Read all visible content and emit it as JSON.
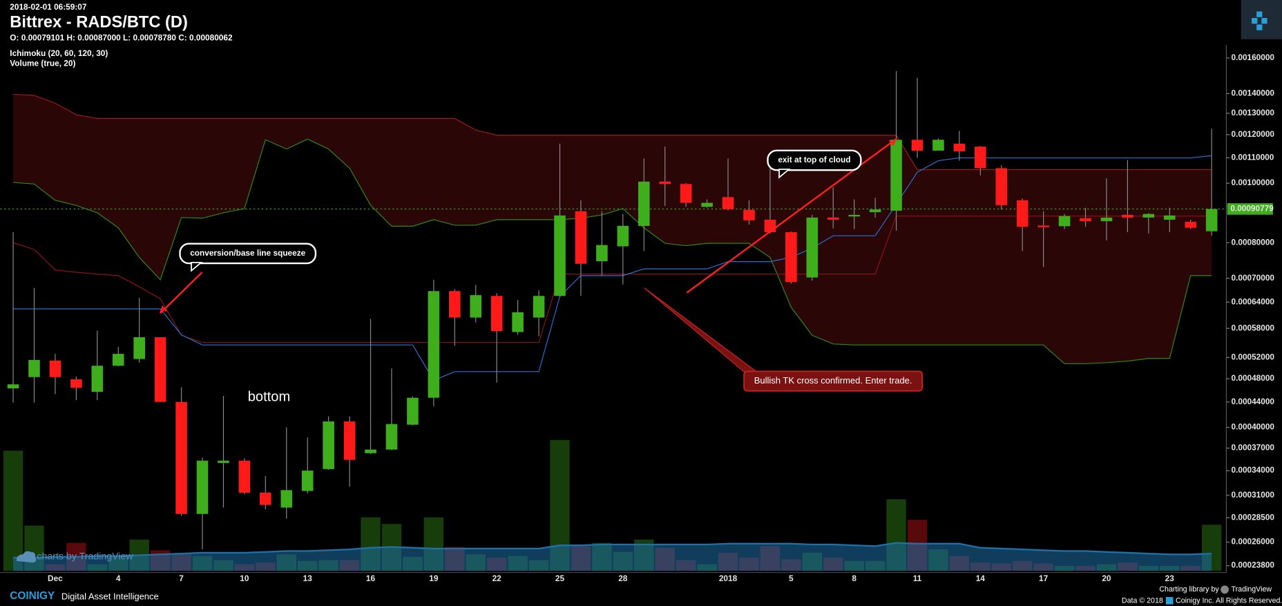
{
  "header": {
    "timestamp": "2018-02-01 06:59:07",
    "title": "Bittrex - RADS/BTC (D)",
    "ohlc": "O: 0.00079101 H: 0.00087000 L: 0.00078780 C: 0.00080062",
    "indicators": [
      "Ichimoku (20, 60, 120, 30)",
      "Volume (true, 20)"
    ]
  },
  "chart_data": {
    "type": "candlestick",
    "log_scale": true,
    "grid": false,
    "categories": [
      null,
      null,
      "Dec",
      null,
      null,
      "4",
      null,
      null,
      "7",
      null,
      null,
      "10",
      null,
      null,
      "13",
      null,
      null,
      "16",
      null,
      null,
      "19",
      null,
      null,
      "22",
      null,
      null,
      "25",
      null,
      null,
      "28",
      null,
      null,
      null,
      null,
      "2018",
      null,
      null,
      "5",
      null,
      null,
      "8",
      null,
      null,
      "11",
      null,
      null,
      "14",
      null,
      null,
      "17",
      null,
      null,
      "20",
      null,
      null,
      "23",
      null,
      null
    ],
    "open": [
      0.000463,
      0.000483,
      0.000514,
      0.000479,
      0.000457,
      0.000504,
      0.000517,
      0.000561,
      0.00044,
      0.000289,
      0.00035,
      0.000353,
      0.000313,
      0.000296,
      0.000315,
      0.000342,
      0.000409,
      0.000363,
      0.000368,
      0.000404,
      0.000447,
      0.000667,
      0.000604,
      0.000655,
      0.000572,
      0.000604,
      0.000655,
      0.0009,
      0.000746,
      0.000789,
      0.000852,
      0.001006,
      0.000997,
      0.000915,
      0.000949,
      0.000905,
      0.000872,
      0.000832,
      0.000702,
      0.000879,
      0.000884,
      0.000897,
      0.000902,
      0.001177,
      0.00113,
      0.00116,
      0.001147,
      0.001058,
      0.000938,
      0.000853,
      0.000851,
      0.000877,
      0.000867,
      0.000888,
      0.000879,
      0.000872,
      0.000865,
      0.000835
    ],
    "high": [
      0.000832,
      0.000675,
      0.000527,
      0.000484,
      0.000575,
      0.000541,
      0.00065,
      0.000561,
      0.000465,
      0.000357,
      0.00045,
      0.000356,
      0.000333,
      0.0004,
      0.000385,
      0.000417,
      0.000417,
      0.000601,
      0.000499,
      0.000449,
      0.000696,
      0.000672,
      0.000683,
      0.000662,
      0.000645,
      0.000669,
      0.00116,
      0.000938,
      0.0009,
      0.000891,
      0.001097,
      0.001147,
      0.001,
      0.000941,
      0.001097,
      0.000938,
      0.001115,
      0.000834,
      0.000888,
      0.000985,
      0.000941,
      0.000947,
      0.001523,
      0.001485,
      0.001183,
      0.001217,
      0.00115,
      0.00107,
      0.000944,
      0.0009,
      0.000891,
      0.000912,
      0.001018,
      0.001091,
      0.000894,
      0.000912,
      0.000872,
      0.001227
    ],
    "low": [
      0.000439,
      0.000439,
      0.000453,
      0.000443,
      0.000443,
      0.000503,
      0.00051,
      0.00044,
      0.000287,
      0.000253,
      0.000296,
      0.000311,
      0.000294,
      0.000284,
      0.000312,
      0.000341,
      0.00032,
      0.000362,
      0.000367,
      0.000403,
      0.000433,
      0.000543,
      0.000593,
      0.000473,
      0.000566,
      0.000563,
      0.000653,
      0.000655,
      0.000707,
      0.000684,
      0.000775,
      0.000918,
      0.000915,
      0.000912,
      0.000903,
      0.000856,
      0.000828,
      0.000686,
      0.000694,
      0.000844,
      0.000842,
      0.000879,
      0.000837,
      0.0011,
      0.00113,
      0.001088,
      0.00103,
      0.000906,
      0.000775,
      0.00073,
      0.000842,
      0.000849,
      0.000807,
      0.000832,
      0.000828,
      0.000832,
      0.000842,
      0.000821
    ],
    "close": [
      0.00047,
      0.000515,
      0.000483,
      0.000464,
      0.000504,
      0.000527,
      0.000561,
      0.00044,
      0.000289,
      0.000353,
      0.000353,
      0.000313,
      0.000299,
      0.000316,
      0.00034,
      0.000409,
      0.000354,
      0.000368,
      0.000405,
      0.000447,
      0.000667,
      0.000604,
      0.000657,
      0.000574,
      0.000616,
      0.000655,
      0.000886,
      0.000739,
      0.000793,
      0.000852,
      0.001006,
      0.000997,
      0.000929,
      0.000929,
      0.000907,
      0.00087,
      0.000832,
      0.00069,
      0.000879,
      0.000872,
      0.000888,
      0.000906,
      0.001177,
      0.00113,
      0.001177,
      0.001127,
      0.001058,
      0.000921,
      0.000849,
      0.000851,
      0.000884,
      0.000867,
      0.000879,
      0.000879,
      0.000891,
      0.000886,
      0.000846,
      0.00090779
    ],
    "volume": [
      146,
      55,
      8,
      34,
      8,
      18,
      38,
      25,
      20,
      18,
      13,
      8,
      10,
      20,
      12,
      13,
      13,
      65,
      57,
      17,
      65,
      29,
      20,
      16,
      18,
      13,
      159,
      30,
      34,
      23,
      38,
      28,
      13,
      8,
      22,
      16,
      30,
      14,
      22,
      16,
      12,
      12,
      87,
      62,
      26,
      18,
      10,
      9,
      12,
      9,
      6,
      6,
      8,
      10,
      6,
      6,
      6,
      56
    ],
    "volume_ma": [
      16,
      16,
      17,
      17,
      18,
      18,
      19,
      20,
      21,
      22,
      22,
      22,
      23,
      24,
      24,
      25,
      26,
      28,
      29,
      28,
      27,
      27,
      27,
      27,
      27,
      27,
      31,
      31,
      32,
      32,
      32,
      32,
      32,
      32,
      33,
      33,
      33,
      33,
      32,
      32,
      31,
      30,
      34,
      33,
      33,
      33,
      28,
      27,
      26,
      25,
      24,
      24,
      23,
      22,
      21,
      20,
      20,
      21
    ],
    "up_color": "#3fae1c",
    "down_color": "#ff1a1a",
    "volume_ma_color": "#1f6fa8",
    "cloud_color": "#3c0808",
    "overlays": [
      {
        "color": "#a01818",
        "values": [
          0.001396,
          0.00139,
          0.00135,
          0.001293,
          0.001275,
          0.001275,
          0.001275,
          0.001275,
          0.001275,
          0.001275,
          0.001275,
          0.001275,
          0.001275,
          0.001275,
          0.001275,
          0.001275,
          0.001275,
          0.001275,
          0.001275,
          0.001275,
          0.001275,
          0.001275,
          0.001221,
          0.001197,
          0.001197,
          0.001197,
          0.001197,
          0.001197,
          0.001197,
          0.001197,
          0.001197,
          0.001197,
          0.001197,
          0.001197,
          0.001197,
          0.001197,
          0.001197,
          0.001197,
          0.001197,
          0.001197,
          0.001197,
          0.001197,
          0.001197,
          0.001052,
          0.001052,
          0.001052,
          0.001052,
          0.001052,
          0.001052,
          0.001052,
          0.001052,
          0.001052,
          0.001052,
          0.001052,
          0.001052,
          0.001052,
          0.001052,
          0.001052
        ]
      },
      {
        "color": "#2f8a16",
        "values": [
          0.001003,
          0.000997,
          0.000938,
          0.00092,
          0.000895,
          0.000846,
          0.000757,
          0.000696,
          0.000879,
          0.000877,
          0.000895,
          0.000909,
          0.001177,
          0.001137,
          0.00118,
          0.001137,
          0.001058,
          0.000921,
          0.000851,
          0.000851,
          0.000872,
          0.000854,
          0.000854,
          0.000872,
          0.000872,
          0.000872,
          0.000872,
          0.000877,
          0.000888,
          0.000909,
          0.000846,
          0.000798,
          0.000791,
          0.000798,
          0.000798,
          0.000798,
          0.000757,
          0.000628,
          0.000565,
          0.000547,
          0.000545,
          0.000545,
          0.000545,
          0.000545,
          0.000545,
          0.000545,
          0.000545,
          0.000545,
          0.000545,
          0.000545,
          0.000508,
          0.000508,
          0.00051,
          0.000513,
          0.000518,
          0.000518,
          0.000707,
          0.000707
        ]
      },
      {
        "color": "#8c1414",
        "values": [
          0.0008,
          0.00078,
          0.000722,
          0.000716,
          0.000711,
          0.000707,
          0.000678,
          0.000648,
          0.000565,
          0.00055,
          0.00055,
          0.00055,
          0.00055,
          0.00055,
          0.00055,
          0.00055,
          0.00055,
          0.00055,
          0.00055,
          0.00055,
          0.00055,
          0.00055,
          0.00055,
          0.00055,
          0.00055,
          0.00055,
          0.000711,
          0.000711,
          0.000711,
          0.000711,
          0.000711,
          0.000711,
          0.000711,
          0.000711,
          0.000711,
          0.000711,
          0.000711,
          0.000711,
          0.000711,
          0.000711,
          0.000711,
          0.000711,
          0.000884,
          0.000884,
          0.000884,
          0.000884,
          0.000884,
          0.000884,
          0.000884,
          0.000884,
          0.000884,
          0.000884,
          0.000884,
          0.000884,
          0.000884,
          0.000884,
          0.000884,
          0.000884
        ]
      },
      {
        "color": "#2a6fd6",
        "values": [
          0.000624,
          0.000624,
          0.000624,
          0.000624,
          0.000624,
          0.000624,
          0.000624,
          0.000624,
          0.000566,
          0.000545,
          0.000545,
          0.000545,
          0.000545,
          0.000545,
          0.000545,
          0.000545,
          0.000545,
          0.000545,
          0.000545,
          0.000545,
          0.000477,
          0.000493,
          0.000493,
          0.000493,
          0.000493,
          0.000493,
          0.000654,
          0.000707,
          0.000707,
          0.000707,
          0.000725,
          0.000725,
          0.000725,
          0.000725,
          0.000745,
          0.000745,
          0.000745,
          0.000757,
          0.000784,
          0.000821,
          0.000821,
          0.000821,
          0.000924,
          0.001042,
          0.001088,
          0.0011,
          0.0011,
          0.0011,
          0.0011,
          0.0011,
          0.0011,
          0.0011,
          0.0011,
          0.0011,
          0.0011,
          0.0011,
          0.0011,
          0.001109
        ]
      }
    ],
    "ylim": [
      0.000232,
      0.00168
    ],
    "yticks": [
      {
        "value": 0.0016,
        "label": "0.00160000"
      },
      {
        "value": 0.0014,
        "label": "0.00140000"
      },
      {
        "value": 0.0013,
        "label": "0.00130000"
      },
      {
        "value": 0.0012,
        "label": "0.00120000"
      },
      {
        "value": 0.0011,
        "label": "0.00110000"
      },
      {
        "value": 0.001,
        "label": "0.00100000"
      },
      {
        "value": 0.0008,
        "label": "0.00080000"
      },
      {
        "value": 0.0007,
        "label": "0.00070000"
      },
      {
        "value": 0.00064,
        "label": "0.00064000"
      },
      {
        "value": 0.00058,
        "label": "0.00058000"
      },
      {
        "value": 0.00052,
        "label": "0.00052000"
      },
      {
        "value": 0.00048,
        "label": "0.00048000"
      },
      {
        "value": 0.00044,
        "label": "0.00044000"
      },
      {
        "value": 0.0004,
        "label": "0.00040000"
      },
      {
        "value": 0.00037,
        "label": "0.00037000"
      },
      {
        "value": 0.00034,
        "label": "0.00034000"
      },
      {
        "value": 0.00031,
        "label": "0.00031000"
      },
      {
        "value": 0.000285,
        "label": "0.00028500"
      },
      {
        "value": 0.00026,
        "label": "0.00026000"
      },
      {
        "value": 0.000238,
        "label": "0.00023800"
      }
    ],
    "last_price": 0.00090779,
    "annotations": [
      {
        "text": "conversion/base line squeeze"
      },
      {
        "text": "exit at top of cloud"
      },
      {
        "text": "Bullish TK cross confirmed. Enter trade."
      },
      {
        "text": "bottom"
      }
    ]
  },
  "footer": {
    "watermark": "charts by TradingView",
    "brand": "COINIGY",
    "tagline": "Digital Asset Intelligence",
    "library": "Charting library by",
    "library_name": "TradingView",
    "data_note": "Data © 2018",
    "rights": "Coinigy Inc. All Rights Reserved."
  }
}
